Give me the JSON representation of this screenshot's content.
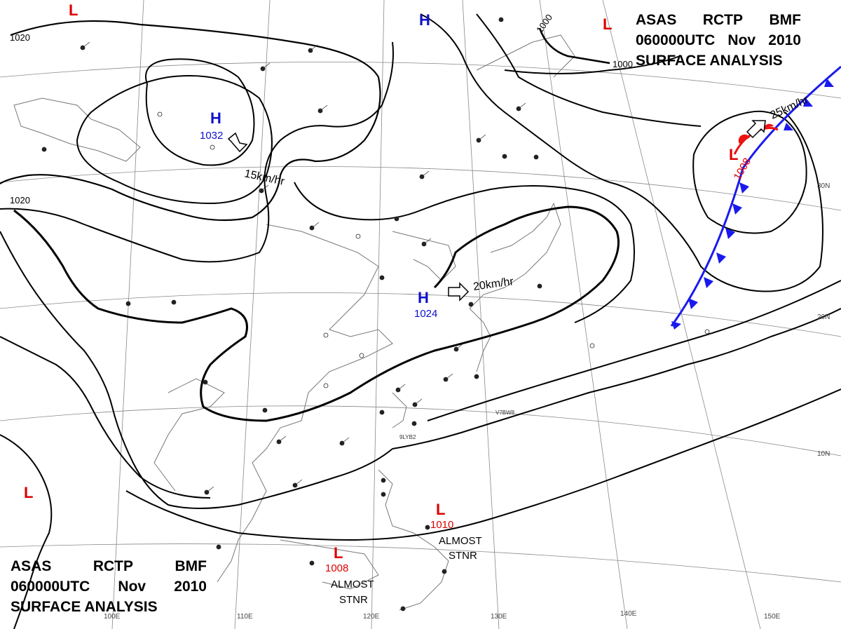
{
  "title": {
    "line1": [
      "ASAS",
      "RCTP",
      "BMF"
    ],
    "line2": [
      "060000UTC",
      "Nov",
      "2010"
    ],
    "line3": "SURFACE ANALYSIS"
  },
  "colors": {
    "high": "#1010cc",
    "low": "#dd0000",
    "cold_front": "#1a1aee",
    "warm_front": "#ee1111",
    "isobar": "#000000",
    "grid": "#888888",
    "coast": "#666666"
  },
  "pressure_systems": [
    {
      "type": "H",
      "value": "1032",
      "name": "high-mongolia"
    },
    {
      "type": "H",
      "value": "1024",
      "name": "high-east-china-sea"
    },
    {
      "type": "H",
      "value": "",
      "name": "high-north"
    },
    {
      "type": "L",
      "value": "1008",
      "name": "low-pacific"
    },
    {
      "type": "L",
      "value": "1010",
      "name": "low-philippines"
    },
    {
      "type": "L",
      "value": "1008",
      "name": "low-south-china-sea"
    },
    {
      "type": "L",
      "value": "",
      "name": "low-northwest"
    },
    {
      "type": "L",
      "value": "",
      "name": "low-northeast"
    },
    {
      "type": "L",
      "value": "",
      "name": "low-southwest"
    }
  ],
  "motion_labels": [
    "15km/hr",
    "20km/hr",
    "25km/hr"
  ],
  "stationary_labels": [
    [
      "ALMOST",
      "STNR"
    ],
    [
      "ALMOST",
      "STNR"
    ]
  ],
  "isobar_labels": [
    "1020",
    "1020",
    "1000",
    "1000"
  ],
  "latitude_labels": [
    "30N",
    "20N",
    "10N"
  ],
  "longitude_labels": [
    "100E",
    "110E",
    "120E",
    "130E",
    "140E",
    "150E"
  ],
  "station_codes": [
    "V7BW8",
    "9LYB2"
  ]
}
